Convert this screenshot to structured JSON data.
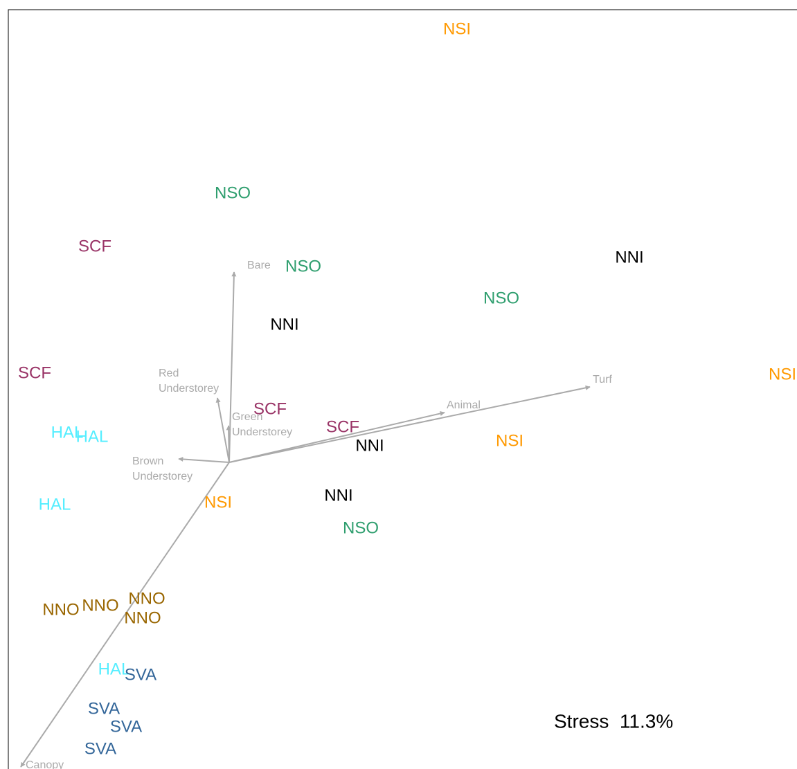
{
  "chart_data": {
    "type": "ordination",
    "xlim": [
      0,
      114
    ],
    "ylim": [
      0,
      110
    ],
    "points": [
      {
        "label": "NSI",
        "color": "#ff9900",
        "x": 64.8,
        "y": 107.1
      },
      {
        "label": "NSO",
        "color": "#2e9e6e",
        "x": 32.4,
        "y": 83.4
      },
      {
        "label": "SCF",
        "color": "#993366",
        "x": 12.5,
        "y": 75.7
      },
      {
        "label": "NSO",
        "color": "#2e9e6e",
        "x": 42.6,
        "y": 72.8
      },
      {
        "label": "NNI",
        "color": "#000000",
        "x": 89.7,
        "y": 74.1
      },
      {
        "label": "NSO",
        "color": "#2e9e6e",
        "x": 71.2,
        "y": 68.2
      },
      {
        "label": "NNI",
        "color": "#000000",
        "x": 39.9,
        "y": 64.4
      },
      {
        "label": "SCF",
        "color": "#993366",
        "x": 3.8,
        "y": 57.4
      },
      {
        "label": "NSI",
        "color": "#ff9900",
        "x": 111.8,
        "y": 57.2
      },
      {
        "label": "SCF",
        "color": "#993366",
        "x": 37.8,
        "y": 52.2
      },
      {
        "label": "SCF",
        "color": "#993366",
        "x": 48.3,
        "y": 49.6
      },
      {
        "label": "NNI",
        "color": "#000000",
        "x": 52.2,
        "y": 46.9
      },
      {
        "label": "NSI",
        "color": "#ff9900",
        "x": 72.4,
        "y": 47.6
      },
      {
        "label": "HAL",
        "color": "#55eeff",
        "x": 8.5,
        "y": 48.8
      },
      {
        "label": "HAL",
        "color": "#55eeff",
        "x": 12.1,
        "y": 48.2
      },
      {
        "label": "HAL",
        "color": "#55eeff",
        "x": 6.7,
        "y": 38.4
      },
      {
        "label": "NSI",
        "color": "#ff9900",
        "x": 30.3,
        "y": 38.7
      },
      {
        "label": "NNI",
        "color": "#000000",
        "x": 47.7,
        "y": 39.7
      },
      {
        "label": "NSO",
        "color": "#2e9e6e",
        "x": 50.9,
        "y": 35.0
      },
      {
        "label": "NNO",
        "color": "#996600",
        "x": 7.6,
        "y": 23.2
      },
      {
        "label": "NNO",
        "color": "#996600",
        "x": 13.3,
        "y": 23.8
      },
      {
        "label": "NNO",
        "color": "#996600",
        "x": 20.0,
        "y": 24.8
      },
      {
        "label": "NNO",
        "color": "#996600",
        "x": 19.4,
        "y": 22.0
      },
      {
        "label": "HAL",
        "color": "#55eeff",
        "x": 15.3,
        "y": 14.6
      },
      {
        "label": "SVA",
        "color": "#336699",
        "x": 19.1,
        "y": 13.8
      },
      {
        "label": "SVA",
        "color": "#336699",
        "x": 13.8,
        "y": 8.9
      },
      {
        "label": "SVA",
        "color": "#336699",
        "x": 17.0,
        "y": 6.3
      },
      {
        "label": "SVA",
        "color": "#336699",
        "x": 13.3,
        "y": 3.1
      }
    ],
    "vector_origin": {
      "x": 31.9,
      "y": 44.6
    },
    "vector_color": "#aaaaaa",
    "vectors": [
      {
        "label": [
          "Bare"
        ],
        "x": 32.6,
        "y": 72.1
      },
      {
        "label": [
          "Red",
          "Understorey"
        ],
        "x": 30.2,
        "y": 53.9
      },
      {
        "label": [
          "Green",
          "Understorey"
        ],
        "x": 31.8,
        "y": 49.9
      },
      {
        "label": [
          "Brown",
          "Understorey"
        ],
        "x": 24.6,
        "y": 45.1
      },
      {
        "label": [
          "Animal"
        ],
        "x": 63.0,
        "y": 51.8
      },
      {
        "label": [
          "Turf"
        ],
        "x": 84.0,
        "y": 55.5
      },
      {
        "label": [
          "Canopy"
        ],
        "x": 1.8,
        "y": 0.6
      }
    ],
    "annotation": "Stress  11.3%"
  }
}
